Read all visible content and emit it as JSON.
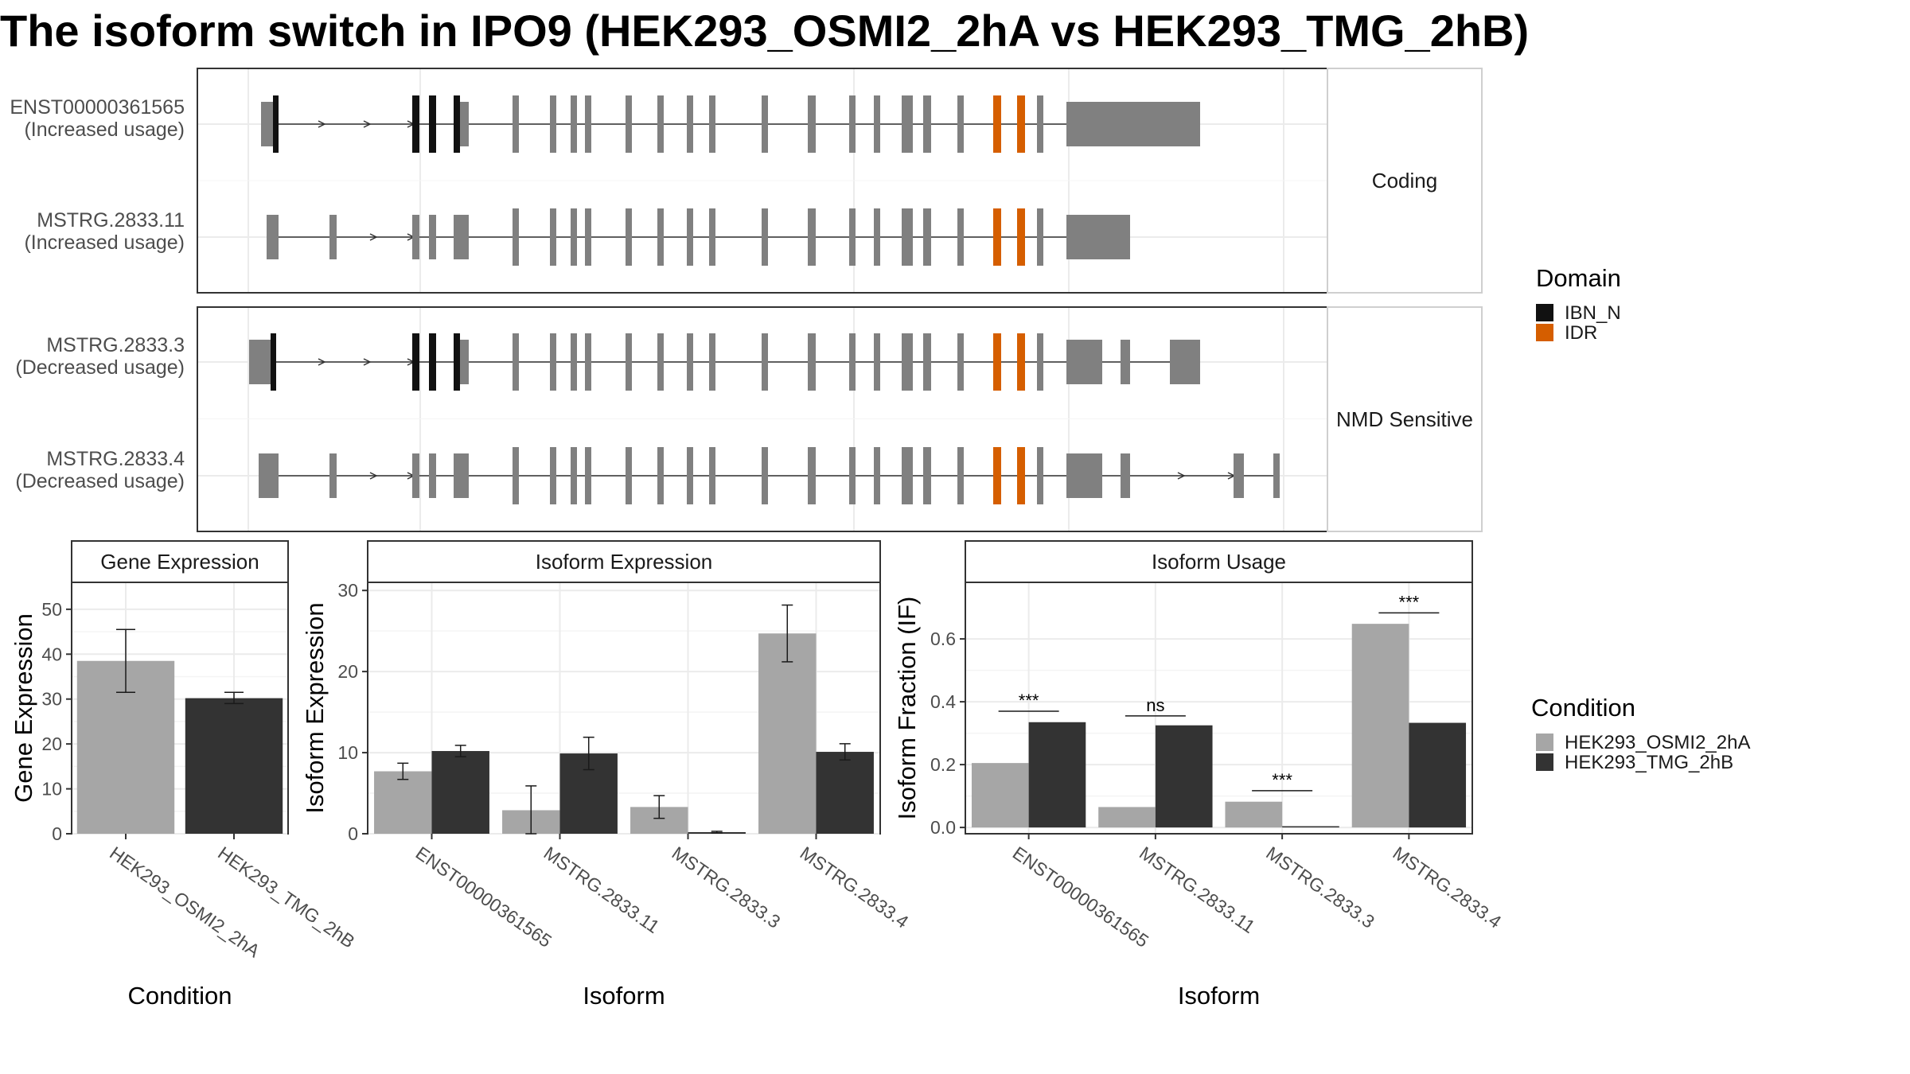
{
  "title": "The isoform switch in IPO9 (HEK293_OSMI2_2hA vs HEK293_TMG_2hB)",
  "colors": {
    "exon": "#808080",
    "ibn_n": "#111111",
    "idr": "#d55e00",
    "cond_a": "#a6a6a6",
    "cond_b": "#333333",
    "grid": "#ebebeb",
    "panel_border": "#333333"
  },
  "structure": {
    "facets": [
      {
        "label": "Coding",
        "isoforms": [
          {
            "name": "ENST00000361565",
            "usage": "(Increased usage)"
          },
          {
            "name": "MSTRG.2833.11",
            "usage": "(Increased usage)"
          }
        ]
      },
      {
        "label": "NMD Sensitive",
        "isoforms": [
          {
            "name": "MSTRG.2833.3",
            "usage": "(Decreased usage)"
          },
          {
            "name": "MSTRG.2833.4",
            "usage": "(Decreased usage)"
          }
        ]
      }
    ],
    "domain_legend": {
      "title": "Domain",
      "items": [
        {
          "label": "IBN_N",
          "color": "#111111"
        },
        {
          "label": "IDR",
          "color": "#d55e00"
        }
      ]
    }
  },
  "condition_legend": {
    "title": "Condition",
    "items": [
      {
        "label": "HEK293_OSMI2_2hA",
        "color": "#a6a6a6"
      },
      {
        "label": "HEK293_TMG_2hB",
        "color": "#333333"
      }
    ]
  },
  "chart_data": [
    {
      "type": "bar",
      "title": "Gene Expression",
      "xlabel": "Condition",
      "ylabel": "Gene Expression",
      "ylim": [
        0,
        56
      ],
      "yticks": [
        0,
        10,
        20,
        30,
        40,
        50
      ],
      "categories": [
        "HEK293_OSMI2_2hA",
        "HEK293_TMG_2hB"
      ],
      "values": [
        38.5,
        30.2
      ],
      "error": [
        [
          31.5,
          45.5
        ],
        [
          29.0,
          31.5
        ]
      ]
    },
    {
      "type": "bar",
      "title": "Isoform Expression",
      "xlabel": "Isoform",
      "ylabel": "Isoform Expression",
      "ylim": [
        0,
        31
      ],
      "yticks": [
        0,
        10,
        20,
        30
      ],
      "categories": [
        "ENST00000361565",
        "MSTRG.2833.11",
        "MSTRG.2833.3",
        "MSTRG.2833.4"
      ],
      "series": [
        {
          "name": "HEK293_OSMI2_2hA",
          "values": [
            7.7,
            2.9,
            3.3,
            24.7
          ],
          "error": [
            [
              6.7,
              8.7
            ],
            [
              0.0,
              5.9
            ],
            [
              1.9,
              4.7
            ],
            [
              21.2,
              28.2
            ]
          ]
        },
        {
          "name": "HEK293_TMG_2hB",
          "values": [
            10.2,
            9.9,
            0.2,
            10.1
          ],
          "error": [
            [
              9.5,
              10.9
            ],
            [
              7.9,
              11.9
            ],
            [
              0.1,
              0.3
            ],
            [
              9.1,
              11.1
            ]
          ]
        }
      ]
    },
    {
      "type": "bar",
      "title": "Isoform Usage",
      "xlabel": "Isoform",
      "ylabel": "Isoform Fraction (IF)",
      "ylim": [
        -0.02,
        0.78
      ],
      "yticks": [
        0.0,
        0.2,
        0.4,
        0.6
      ],
      "ytick_labels": [
        "0.0",
        "0.2",
        "0.4",
        "0.6"
      ],
      "categories": [
        "ENST00000361565",
        "MSTRG.2833.11",
        "MSTRG.2833.3",
        "MSTRG.2833.4"
      ],
      "series": [
        {
          "name": "HEK293_OSMI2_2hA",
          "values": [
            0.205,
            0.065,
            0.082,
            0.648
          ]
        },
        {
          "name": "HEK293_TMG_2hB",
          "values": [
            0.335,
            0.325,
            0.004,
            0.333
          ]
        }
      ],
      "significance": [
        {
          "label": "***",
          "y": 0.37
        },
        {
          "label": "ns",
          "y": 0.355
        },
        {
          "label": "***",
          "y": 0.117
        },
        {
          "label": "***",
          "y": 0.683
        }
      ]
    }
  ]
}
